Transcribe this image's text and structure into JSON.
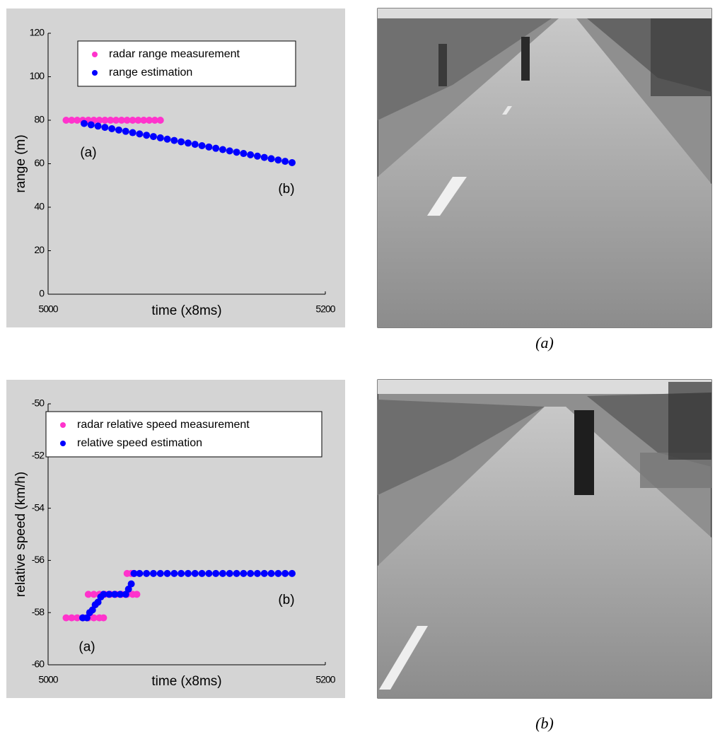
{
  "chart_data": [
    {
      "type": "scatter",
      "xlabel": "time (x8ms)",
      "ylabel": "range (m)",
      "xlim": [
        5000,
        5200
      ],
      "xticks": [
        5000,
        5200
      ],
      "ylim": [
        0,
        120
      ],
      "yticks": [
        0,
        20,
        40,
        60,
        80,
        100,
        120
      ],
      "legend": "upper center",
      "annotations": [
        "(a)",
        "(b)"
      ],
      "series": [
        {
          "name": "radar range measurement",
          "color": "#ff33cc",
          "x": [
            5013,
            5017,
            5021,
            5025,
            5029,
            5033,
            5037,
            5041,
            5045,
            5049,
            5053,
            5057,
            5061,
            5065,
            5069,
            5073,
            5077,
            5081
          ],
          "values": [
            80,
            80,
            80,
            80,
            80,
            80,
            80,
            80,
            80,
            80,
            80,
            80,
            80,
            80,
            80,
            80,
            80,
            80
          ]
        },
        {
          "name": "range estimation",
          "color": "#0000ff",
          "x": [
            5026,
            5031,
            5036,
            5041,
            5046,
            5051,
            5056,
            5061,
            5066,
            5071,
            5076,
            5081,
            5086,
            5091,
            5096,
            5101,
            5106,
            5111,
            5116,
            5121,
            5126,
            5131,
            5136,
            5141,
            5146,
            5151,
            5156,
            5161,
            5166,
            5171,
            5176
          ],
          "values": [
            78.5,
            77.9,
            77.3,
            76.7,
            76.1,
            75.5,
            74.9,
            74.3,
            73.7,
            73.1,
            72.5,
            71.9,
            71.3,
            70.7,
            70.1,
            69.5,
            68.9,
            68.3,
            67.7,
            67.1,
            66.5,
            65.9,
            65.3,
            64.7,
            64.1,
            63.5,
            62.9,
            62.3,
            61.7,
            61.1,
            60.5
          ]
        }
      ]
    },
    {
      "type": "scatter",
      "xlabel": "time (x8ms)",
      "ylabel": "relative speed (km/h)",
      "xlim": [
        5000,
        5200
      ],
      "xticks": [
        5000,
        5200
      ],
      "ylim": [
        -60,
        -50
      ],
      "yticks": [
        -60,
        -58,
        -56,
        -54,
        -52,
        -50
      ],
      "legend": "upper center",
      "annotations": [
        "(a)",
        "(b)"
      ],
      "series": [
        {
          "name": "radar relative speed measurement",
          "color": "#ff33cc",
          "x": [
            5013,
            5017,
            5021,
            5025,
            5029,
            5033,
            5037,
            5040,
            5029,
            5033,
            5037,
            5041,
            5045,
            5049,
            5053,
            5057,
            5061,
            5064,
            5057,
            5060,
            5062
          ],
          "values": [
            -58.2,
            -58.2,
            -58.2,
            -58.2,
            -58.2,
            -58.2,
            -58.2,
            -58.2,
            -57.3,
            -57.3,
            -57.3,
            -57.3,
            -57.3,
            -57.3,
            -57.3,
            -57.3,
            -57.3,
            -57.3,
            -56.5,
            -56.5,
            -56.5
          ]
        },
        {
          "name": "relative speed estimation",
          "color": "#0000ff",
          "x": [
            5025,
            5028,
            5030,
            5032,
            5034,
            5036,
            5038,
            5040,
            5044,
            5048,
            5052,
            5056,
            5058,
            5060,
            5062,
            5066,
            5071,
            5076,
            5081,
            5086,
            5091,
            5096,
            5101,
            5106,
            5111,
            5116,
            5121,
            5126,
            5131,
            5136,
            5141,
            5146,
            5151,
            5156,
            5161,
            5166,
            5171,
            5176
          ],
          "values": [
            -58.2,
            -58.2,
            -58.0,
            -57.9,
            -57.7,
            -57.6,
            -57.4,
            -57.3,
            -57.3,
            -57.3,
            -57.3,
            -57.3,
            -57.1,
            -56.9,
            -56.5,
            -56.5,
            -56.5,
            -56.5,
            -56.5,
            -56.5,
            -56.5,
            -56.5,
            -56.5,
            -56.5,
            -56.5,
            -56.5,
            -56.5,
            -56.5,
            -56.5,
            -56.5,
            -56.5,
            -56.5,
            -56.5,
            -56.5,
            -56.5,
            -56.5,
            -56.5,
            -56.5
          ]
        }
      ]
    }
  ],
  "captions": [
    "(a)",
    "(b)"
  ]
}
